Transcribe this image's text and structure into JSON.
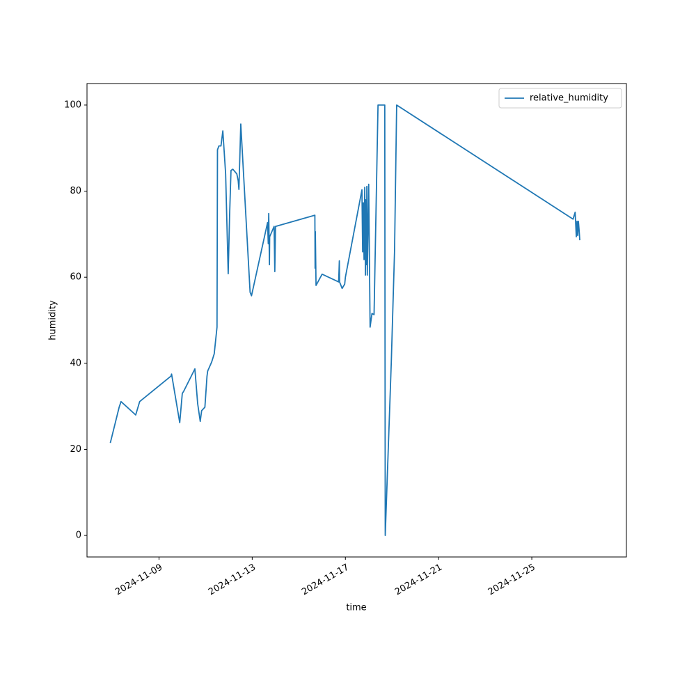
{
  "chart_data": {
    "type": "line",
    "xlabel": "time",
    "ylabel": "humidity",
    "xlim": [
      20032.91,
      20056.06
    ],
    "ylim": [
      -5,
      105
    ],
    "xticks": [
      {
        "value": 20036,
        "label": "2024-11-09"
      },
      {
        "value": 20040,
        "label": "2024-11-13"
      },
      {
        "value": 20044,
        "label": "2024-11-17"
      },
      {
        "value": 20048,
        "label": "2024-11-21"
      },
      {
        "value": 20052,
        "label": "2024-11-25"
      }
    ],
    "yticks": [
      0,
      20,
      40,
      60,
      80,
      100
    ],
    "legend": "upper right",
    "grid": false,
    "x": [
      20033.91,
      20034.29,
      20034.37,
      20035.0,
      20035.17,
      20036.51,
      20036.54,
      20036.89,
      20037.0,
      20037.06,
      20037.54,
      20037.66,
      20037.77,
      20037.83,
      20037.97,
      20038.06,
      20038.09,
      20038.26,
      20038.37,
      20038.49,
      20038.51,
      20038.57,
      20038.66,
      20038.74,
      20038.86,
      20038.97,
      20039.03,
      20039.09,
      20039.17,
      20039.34,
      20039.4,
      20039.43,
      20039.51,
      20039.91,
      20039.97,
      20040.66,
      20040.69,
      20040.71,
      20040.74,
      20040.75,
      20040.94,
      20040.97,
      20041.0,
      20042.69,
      20042.7,
      20042.71,
      20042.74,
      20043.0,
      20043.71,
      20043.74,
      20043.75,
      20043.86,
      20043.97,
      20044.0,
      20044.71,
      20044.74,
      20044.77,
      20044.8,
      20044.83,
      20044.86,
      20044.87,
      20044.91,
      20044.92,
      20044.94,
      20045.0,
      20045.06,
      20045.14,
      20045.23,
      20045.4,
      20045.69,
      20045.71,
      20045.97,
      20046.11,
      20046.2,
      20053.77,
      20053.86,
      20053.91,
      20053.94,
      20053.97,
      20054.0,
      20054.03,
      20054.06
    ],
    "series": [
      {
        "name": "relative_humidity",
        "color": "#1f77b4",
        "values": [
          21.5,
          29.8,
          31.1,
          28,
          31.1,
          37,
          37.5,
          26.2,
          33,
          33.5,
          38.7,
          30.6,
          26.5,
          29,
          29.8,
          37,
          38.2,
          40.3,
          42.2,
          48.4,
          89.6,
          90.5,
          90.5,
          94,
          84,
          60.8,
          74.3,
          84.8,
          85.1,
          84,
          82.4,
          80.4,
          95.6,
          56.5,
          55.7,
          72.7,
          67.8,
          74.8,
          62.9,
          69.4,
          71.8,
          61.3,
          71.8,
          74.4,
          62.1,
          70.6,
          58.1,
          60.7,
          58.9,
          63.8,
          58.9,
          57.4,
          58.4,
          60,
          80.3,
          65.9,
          77.3,
          64.1,
          80.9,
          60.5,
          78,
          62.9,
          81.1,
          60.5,
          81.6,
          48.4,
          51.6,
          51.3,
          100,
          100,
          0,
          40.3,
          66.2,
          100,
          73.5,
          75.1,
          69.4,
          73,
          69.7,
          73,
          71,
          68.6
        ]
      }
    ]
  }
}
